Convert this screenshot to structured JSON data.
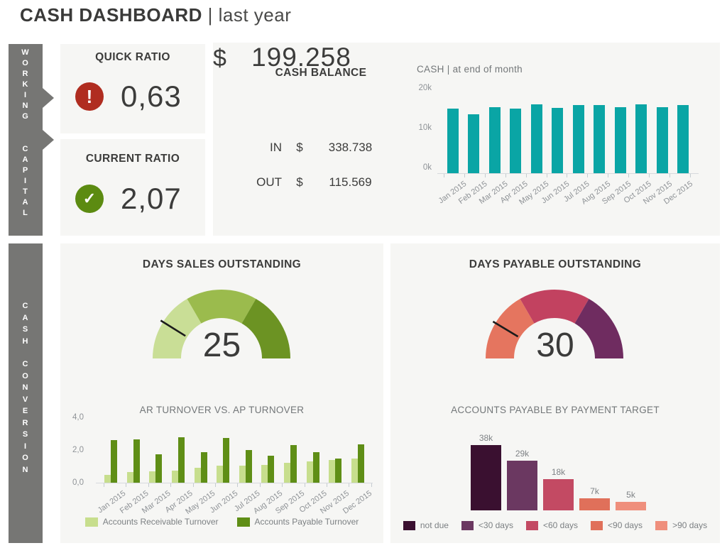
{
  "page": {
    "title_main": "CASH DASHBOARD",
    "title_sub": "| last year"
  },
  "sections": {
    "working_capital": {
      "label": "WORKING CAPITAL",
      "words": [
        "WORKING",
        "CAPITAL"
      ]
    },
    "cash_conversion": {
      "label": "CASH CONVERSION",
      "words": [
        "CASH",
        "CONVERSION"
      ]
    }
  },
  "cards": {
    "quick_ratio": {
      "title": "QUICK RATIO",
      "value": "0,63",
      "status": "alert",
      "icon": "exclamation-circle-icon",
      "icon_glyph": "!",
      "icon_color": "#B02D20"
    },
    "current_ratio": {
      "title": "CURRENT RATIO",
      "value": "2,07",
      "status": "ok",
      "icon": "check-circle-icon",
      "icon_glyph": "✓",
      "icon_color": "#5C8B11"
    },
    "cash_balance": {
      "title": "CASH BALANCE",
      "currency": "$",
      "value": "199.258",
      "rows": [
        {
          "label": "IN",
          "currency": "$",
          "value": "338.738"
        },
        {
          "label": "OUT",
          "currency": "$",
          "value": "115.569"
        }
      ]
    }
  },
  "chart_data": [
    {
      "id": "cash_eom",
      "type": "bar",
      "title": "CASH | at end of month",
      "categories": [
        "Jan 2015",
        "Feb 2015",
        "Mar 2015",
        "Apr 2015",
        "May 2015",
        "Jun 2015",
        "Jul 2015",
        "Aug 2015",
        "Sep 2015",
        "Oct 2015",
        "Nov 2015",
        "Dec 2015"
      ],
      "values": [
        16.3,
        14.8,
        16.6,
        16.2,
        17.3,
        16.4,
        17.1,
        17.2,
        16.6,
        17.4,
        16.6,
        17.1
      ],
      "unit": "k",
      "ylim": [
        0,
        20
      ],
      "yticks": [
        "0k",
        "10k",
        "20k"
      ],
      "bar_color": "#0AA5A5",
      "grid": false,
      "legend": "none"
    },
    {
      "id": "dso_gauge",
      "type": "gauge",
      "title": "DAYS SALES OUTSTANDING",
      "value": 25,
      "needle_angle_deg": 148,
      "segments": [
        {
          "from": 180,
          "to": 120,
          "color": "#C9DE96"
        },
        {
          "from": 120,
          "to": 60,
          "color": "#9BBB4D"
        },
        {
          "from": 60,
          "to": 0,
          "color": "#6C9323"
        }
      ],
      "needle_color": "#1B1B1B"
    },
    {
      "id": "dpo_gauge",
      "type": "gauge",
      "title": "DAYS PAYABLE OUTSTANDING",
      "value": 30,
      "needle_angle_deg": 149,
      "segments": [
        {
          "from": 180,
          "to": 120,
          "color": "#E5755F"
        },
        {
          "from": 120,
          "to": 60,
          "color": "#C24260"
        },
        {
          "from": 60,
          "to": 0,
          "color": "#6F2C60"
        }
      ],
      "needle_color": "#1B1B1B"
    },
    {
      "id": "ar_ap_turnover",
      "type": "bar",
      "title": "AR TURNOVER VS. AP TURNOVER",
      "categories": [
        "Jan 2015",
        "Feb 2015",
        "Mar 2015",
        "Apr 2015",
        "May 2015",
        "Jun 2015",
        "Jul 2015",
        "Aug 2015",
        "Sep 2015",
        "Oct 2015",
        "Nov 2015",
        "Dec 2015"
      ],
      "series": [
        {
          "name": "Accounts Receivable Turnover",
          "color": "#C7DE8D",
          "values": [
            0.5,
            0.65,
            0.7,
            0.75,
            0.9,
            1.05,
            1.05,
            1.1,
            1.2,
            1.3,
            1.4,
            1.5
          ]
        },
        {
          "name": "Accounts Payable Turnover",
          "color": "#5F8E16",
          "values": [
            2.6,
            2.65,
            1.75,
            2.8,
            1.85,
            2.75,
            2.0,
            1.65,
            2.3,
            1.85,
            1.5,
            2.35
          ]
        }
      ],
      "ylim": [
        0,
        4
      ],
      "yticks": [
        "0,0",
        "2,0",
        "4,0"
      ],
      "legend_position": "bottom"
    },
    {
      "id": "ap_by_target",
      "type": "bar",
      "title": "ACCOUNTS PAYABLE BY PAYMENT TARGET",
      "categories": [
        "not due",
        "<30 days",
        "<60 days",
        "<90 days",
        ">90 days"
      ],
      "values": [
        38,
        29,
        18,
        7,
        5
      ],
      "unit": "k",
      "value_labels": [
        "38k",
        "29k",
        "18k",
        "7k",
        "5k"
      ],
      "colors": [
        "#3A1030",
        "#6B3861",
        "#C34A63",
        "#E0705A",
        "#EF8F7C"
      ],
      "ylim": [
        0,
        40
      ],
      "legend_position": "bottom"
    }
  ]
}
